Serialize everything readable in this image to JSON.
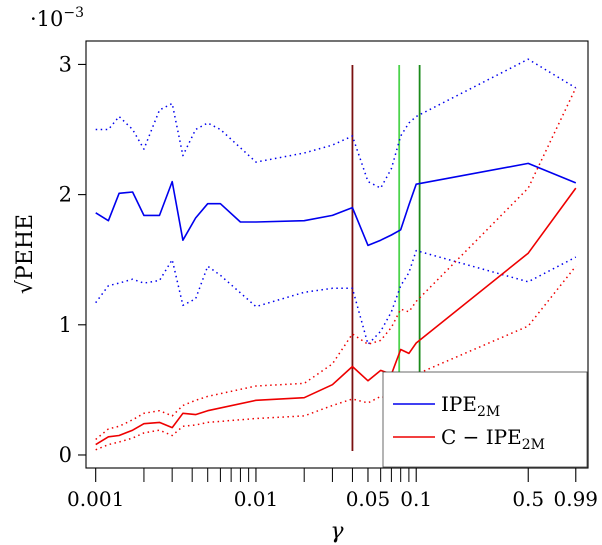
{
  "chart_data": {
    "type": "line",
    "title": "",
    "xlabel": "γ",
    "ylabel": "√PEHE",
    "y_multiplier_label": "·10",
    "y_multiplier_exponent": "−3",
    "x_scale": "log",
    "xlim": [
      0.00087,
      1.18
    ],
    "ylim": [
      -0.0001,
      0.00318
    ],
    "x_tick_labels": [
      {
        "value": 0.001,
        "label": "0.001"
      },
      {
        "value": 0.01,
        "label": "0.01"
      },
      {
        "value": 0.05,
        "label": "0.05"
      },
      {
        "value": 0.1,
        "label": "0.1"
      },
      {
        "value": 0.5,
        "label": "0.5"
      },
      {
        "value": 0.99,
        "label": "0.99"
      }
    ],
    "x_minor_ticks": [
      0.002,
      0.003,
      0.004,
      0.005,
      0.006,
      0.007,
      0.008,
      0.009,
      0.02,
      0.03,
      0.04,
      0.06,
      0.07,
      0.08,
      0.09
    ],
    "y_ticks": [
      {
        "value": 0,
        "label": "0"
      },
      {
        "value": 0.001,
        "label": "1"
      },
      {
        "value": 0.002,
        "label": "2"
      },
      {
        "value": 0.003,
        "label": "3"
      }
    ],
    "legend": {
      "placement": "bottom-right",
      "entries": [
        {
          "series": "IPE_2M",
          "label_main": "IPE",
          "label_sub": "2M"
        },
        {
          "series": "C-IPE_2M",
          "label_main": "C − IPE",
          "label_sub": "2M"
        }
      ]
    },
    "vertical_lines": [
      {
        "x": 0.04,
        "color": "#7a1010"
      },
      {
        "x": 0.0783,
        "color": "#4cd44c"
      },
      {
        "x": 0.105,
        "color": "#1a8a1a"
      }
    ],
    "series": [
      {
        "name": "IPE_2M",
        "color": "#0000ee",
        "style": "solid",
        "x": [
          0.001,
          0.0012,
          0.0014,
          0.0017,
          0.002,
          0.0025,
          0.003,
          0.0035,
          0.0042,
          0.005,
          0.006,
          0.008,
          0.01,
          0.02,
          0.03,
          0.04,
          0.05,
          0.06,
          0.07,
          0.08,
          0.09,
          0.1,
          0.5,
          0.99
        ],
        "y": [
          0.00186,
          0.0018,
          0.00201,
          0.00202,
          0.00184,
          0.00184,
          0.0021,
          0.00165,
          0.00182,
          0.00193,
          0.00193,
          0.00179,
          0.00179,
          0.0018,
          0.00184,
          0.0019,
          0.00161,
          0.00165,
          0.00169,
          0.00173,
          0.00192,
          0.00208,
          0.00224,
          0.00209
        ]
      },
      {
        "name": "IPE_2M upper",
        "color": "#0000ee",
        "style": "dotted",
        "x": [
          0.001,
          0.0012,
          0.0014,
          0.0017,
          0.002,
          0.0025,
          0.003,
          0.0035,
          0.0042,
          0.005,
          0.006,
          0.01,
          0.02,
          0.03,
          0.04,
          0.05,
          0.06,
          0.07,
          0.08,
          0.09,
          0.1,
          0.5,
          0.99
        ],
        "y": [
          0.0025,
          0.0025,
          0.0026,
          0.0025,
          0.00235,
          0.00265,
          0.0027,
          0.0023,
          0.0025,
          0.00255,
          0.0025,
          0.00225,
          0.00232,
          0.00238,
          0.00245,
          0.0021,
          0.00205,
          0.0022,
          0.00245,
          0.00255,
          0.0026,
          0.00304,
          0.00282
        ]
      },
      {
        "name": "IPE_2M lower",
        "color": "#0000ee",
        "style": "dotted",
        "x": [
          0.001,
          0.0012,
          0.0014,
          0.0017,
          0.002,
          0.0025,
          0.003,
          0.0035,
          0.0042,
          0.005,
          0.006,
          0.01,
          0.02,
          0.03,
          0.04,
          0.05,
          0.06,
          0.07,
          0.08,
          0.09,
          0.1,
          0.5,
          0.99
        ],
        "y": [
          0.00117,
          0.0013,
          0.00132,
          0.00135,
          0.00132,
          0.00134,
          0.0015,
          0.00115,
          0.0012,
          0.00145,
          0.00138,
          0.00114,
          0.00125,
          0.00128,
          0.00128,
          0.00085,
          0.00095,
          0.0011,
          0.0013,
          0.0014,
          0.00157,
          0.00133,
          0.00152
        ]
      },
      {
        "name": "C-IPE_2M",
        "color": "#ee0000",
        "style": "solid",
        "x": [
          0.001,
          0.0012,
          0.0014,
          0.0017,
          0.002,
          0.0025,
          0.003,
          0.0035,
          0.0042,
          0.005,
          0.01,
          0.02,
          0.03,
          0.04,
          0.05,
          0.06,
          0.07,
          0.08,
          0.09,
          0.1,
          0.5,
          0.99
        ],
        "y": [
          8e-05,
          0.00014,
          0.00015,
          0.00019,
          0.00024,
          0.00025,
          0.00021,
          0.00032,
          0.00031,
          0.00034,
          0.00042,
          0.00044,
          0.00054,
          0.00068,
          0.00057,
          0.00065,
          0.00062,
          0.00081,
          0.00078,
          0.00086,
          0.00155,
          0.00205
        ]
      },
      {
        "name": "C-IPE_2M upper",
        "color": "#ee0000",
        "style": "dotted",
        "x": [
          0.001,
          0.0012,
          0.0014,
          0.0017,
          0.002,
          0.0025,
          0.003,
          0.0035,
          0.0042,
          0.005,
          0.01,
          0.02,
          0.03,
          0.04,
          0.05,
          0.06,
          0.07,
          0.08,
          0.09,
          0.1,
          0.5,
          0.99
        ],
        "y": [
          0.00012,
          0.0002,
          0.00022,
          0.00027,
          0.00032,
          0.00034,
          0.0003,
          0.00038,
          0.00042,
          0.00045,
          0.00053,
          0.00055,
          0.0007,
          0.00093,
          0.00085,
          0.00088,
          0.00098,
          0.00112,
          0.0011,
          0.00118,
          0.00205,
          0.00282
        ]
      },
      {
        "name": "C-IPE_2M lower",
        "color": "#ee0000",
        "style": "dotted",
        "x": [
          0.001,
          0.0012,
          0.0014,
          0.0017,
          0.002,
          0.0025,
          0.003,
          0.0035,
          0.0042,
          0.005,
          0.01,
          0.02,
          0.03,
          0.04,
          0.05,
          0.06,
          0.07,
          0.08,
          0.09,
          0.1,
          0.5,
          0.99
        ],
        "y": [
          4e-05,
          8e-05,
          0.0001,
          0.00013,
          0.00017,
          0.00019,
          0.00015,
          0.00022,
          0.00023,
          0.00025,
          0.00028,
          0.0003,
          0.00038,
          0.00043,
          0.0004,
          0.00045,
          0.00043,
          0.00058,
          0.00055,
          0.00062,
          0.00099,
          0.00145
        ]
      }
    ]
  }
}
